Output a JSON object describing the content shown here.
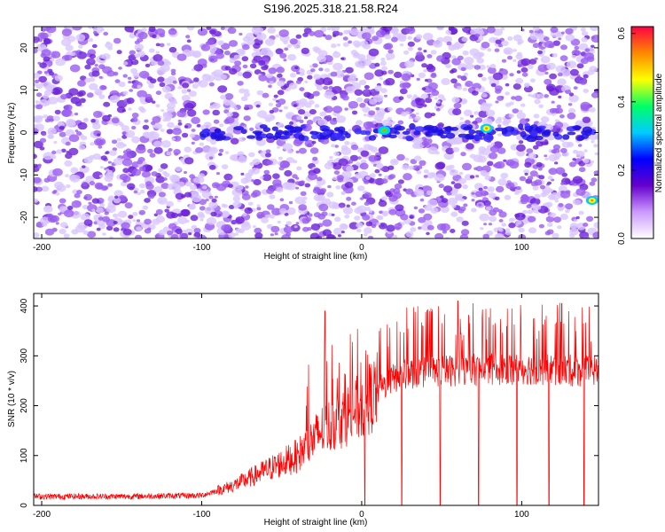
{
  "title": "S196.2025.318.21.58.R24",
  "chart_data": [
    {
      "type": "heatmap",
      "xlabel": "Height of straight line (km)",
      "ylabel": "Frequency (Hz)",
      "xlim": [
        -205,
        148
      ],
      "ylim": [
        -25,
        25
      ],
      "x_ticks": [
        -200,
        -100,
        0,
        100
      ],
      "y_ticks": [
        -20,
        -10,
        0,
        10,
        20
      ],
      "colorbar": {
        "label": "Normalized spectral amplitude",
        "range": [
          0,
          0.62
        ],
        "ticks": [
          "0.0",
          "0.2",
          "0.4",
          "0.6"
        ],
        "colors": [
          "#ffffff",
          "#cc99ff",
          "#6600cc",
          "#0000ff",
          "#00ccff",
          "#00ff66",
          "#ffff00",
          "#ff8800",
          "#ff0044"
        ]
      },
      "features": [
        {
          "x_range": [
            -100,
            148
          ],
          "frequency": 0,
          "description_level": 0.25
        },
        {
          "x": 14,
          "frequency": 0.5,
          "level": 0.35
        },
        {
          "x": 78,
          "frequency": 1,
          "level": 0.45
        },
        {
          "x": 144,
          "frequency": -16,
          "level": 0.5
        }
      ]
    },
    {
      "type": "line",
      "xlabel": "Height of straight line (km)",
      "ylabel": "SNR (10 * v/v)",
      "xlim": [
        -205,
        148
      ],
      "ylim": [
        0,
        425
      ],
      "x_ticks": [
        -200,
        -100,
        0,
        100
      ],
      "y_ticks": [
        0,
        100,
        200,
        300,
        400
      ],
      "color": "#ff0000",
      "series": [
        {
          "x": [
            -205,
            -150,
            -100,
            -80,
            -60,
            -40,
            -25,
            -10,
            0,
            10,
            20,
            30,
            50,
            70,
            100,
            120,
            148
          ],
          "values": [
            18,
            18,
            20,
            40,
            70,
            100,
            150,
            180,
            200,
            230,
            255,
            265,
            270,
            272,
            275,
            272,
            268
          ]
        }
      ],
      "spike_peaks": [
        {
          "x": -23,
          "value": 390
        },
        {
          "x": 2,
          "value": 330
        },
        {
          "x": 60,
          "value": 410
        },
        {
          "x": 125,
          "value": 405
        }
      ],
      "dropouts_to_zero": [
        2,
        25,
        49,
        73,
        97,
        117,
        139
      ]
    }
  ]
}
